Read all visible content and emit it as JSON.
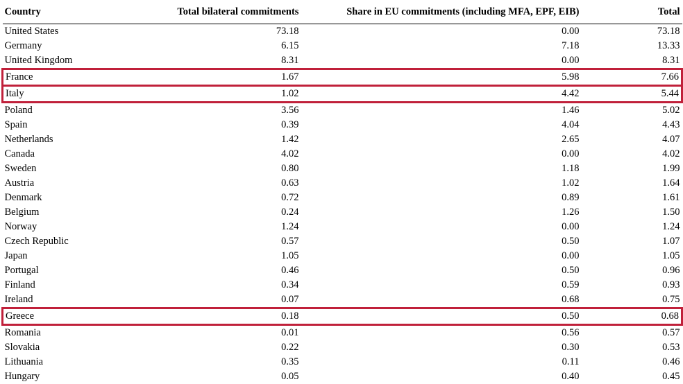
{
  "table": {
    "headers": [
      "Country",
      "Total bilateral commitments",
      "Share in EU commitments (including MFA, EPF, EIB)",
      "Total"
    ],
    "rows": [
      {
        "country": "United States",
        "bilateral": "73.18",
        "eu_share": "0.00",
        "total": "73.18",
        "highlighted": false
      },
      {
        "country": "Germany",
        "bilateral": "6.15",
        "eu_share": "7.18",
        "total": "13.33",
        "highlighted": false
      },
      {
        "country": "United Kingdom",
        "bilateral": "8.31",
        "eu_share": "0.00",
        "total": "8.31",
        "highlighted": false
      },
      {
        "country": "France",
        "bilateral": "1.67",
        "eu_share": "5.98",
        "total": "7.66",
        "highlighted": true
      },
      {
        "country": "Italy",
        "bilateral": "1.02",
        "eu_share": "4.42",
        "total": "5.44",
        "highlighted": true
      },
      {
        "country": "Poland",
        "bilateral": "3.56",
        "eu_share": "1.46",
        "total": "5.02",
        "highlighted": false
      },
      {
        "country": "Spain",
        "bilateral": "0.39",
        "eu_share": "4.04",
        "total": "4.43",
        "highlighted": false
      },
      {
        "country": "Netherlands",
        "bilateral": "1.42",
        "eu_share": "2.65",
        "total": "4.07",
        "highlighted": false
      },
      {
        "country": "Canada",
        "bilateral": "4.02",
        "eu_share": "0.00",
        "total": "4.02",
        "highlighted": false
      },
      {
        "country": "Sweden",
        "bilateral": "0.80",
        "eu_share": "1.18",
        "total": "1.99",
        "highlighted": false
      },
      {
        "country": "Austria",
        "bilateral": "0.63",
        "eu_share": "1.02",
        "total": "1.64",
        "highlighted": false
      },
      {
        "country": "Denmark",
        "bilateral": "0.72",
        "eu_share": "0.89",
        "total": "1.61",
        "highlighted": false
      },
      {
        "country": "Belgium",
        "bilateral": "0.24",
        "eu_share": "1.26",
        "total": "1.50",
        "highlighted": false
      },
      {
        "country": "Norway",
        "bilateral": "1.24",
        "eu_share": "0.00",
        "total": "1.24",
        "highlighted": false
      },
      {
        "country": "Czech Republic",
        "bilateral": "0.57",
        "eu_share": "0.50",
        "total": "1.07",
        "highlighted": false
      },
      {
        "country": "Japan",
        "bilateral": "1.05",
        "eu_share": "0.00",
        "total": "1.05",
        "highlighted": false
      },
      {
        "country": "Portugal",
        "bilateral": "0.46",
        "eu_share": "0.50",
        "total": "0.96",
        "highlighted": false
      },
      {
        "country": "Finland",
        "bilateral": "0.34",
        "eu_share": "0.59",
        "total": "0.93",
        "highlighted": false
      },
      {
        "country": "Ireland",
        "bilateral": "0.07",
        "eu_share": "0.68",
        "total": "0.75",
        "highlighted": false
      },
      {
        "country": "Greece",
        "bilateral": "0.18",
        "eu_share": "0.50",
        "total": "0.68",
        "highlighted": true
      },
      {
        "country": "Romania",
        "bilateral": "0.01",
        "eu_share": "0.56",
        "total": "0.57",
        "highlighted": false
      },
      {
        "country": "Slovakia",
        "bilateral": "0.22",
        "eu_share": "0.30",
        "total": "0.53",
        "highlighted": false
      },
      {
        "country": "Lithuania",
        "bilateral": "0.35",
        "eu_share": "0.11",
        "total": "0.46",
        "highlighted": false
      },
      {
        "country": "Hungary",
        "bilateral": "0.05",
        "eu_share": "0.40",
        "total": "0.45",
        "highlighted": false
      }
    ]
  },
  "colors": {
    "highlight": "#c0203a"
  }
}
